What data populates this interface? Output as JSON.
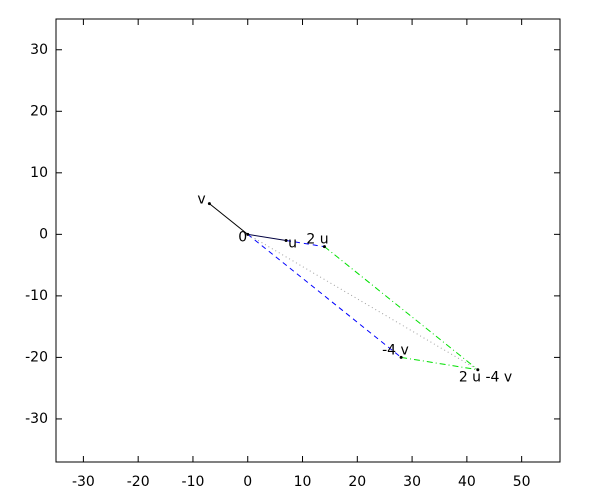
{
  "chart_data": {
    "type": "vector",
    "xlim": [
      -35,
      57
    ],
    "ylim": [
      -37,
      35
    ],
    "xticks": [
      -30,
      -20,
      -10,
      0,
      10,
      20,
      30,
      40,
      50
    ],
    "yticks": [
      -30,
      -20,
      -10,
      0,
      10,
      20,
      30
    ],
    "segments": [
      {
        "x": [
          0,
          -7
        ],
        "y": [
          0,
          5
        ],
        "color": "#000000",
        "style": "solid"
      },
      {
        "x": [
          0,
          7
        ],
        "y": [
          0,
          -1
        ],
        "color": "#000040",
        "style": "solid"
      },
      {
        "x": [
          7,
          14
        ],
        "y": [
          -1,
          -2
        ],
        "color": "#0000ff",
        "style": "dashed"
      },
      {
        "x": [
          0,
          28
        ],
        "y": [
          0,
          -20
        ],
        "color": "#0000ff",
        "style": "dashed"
      },
      {
        "x": [
          0,
          42
        ],
        "y": [
          0,
          -22
        ],
        "color": "#a0a0a0",
        "style": "dotted"
      },
      {
        "x": [
          14,
          42
        ],
        "y": [
          -2,
          -22
        ],
        "color": "#00e000",
        "style": "dashdot"
      },
      {
        "x": [
          28,
          42
        ],
        "y": [
          -20,
          -22
        ],
        "color": "#00e000",
        "style": "dashdot"
      }
    ],
    "points": [
      {
        "label": "v",
        "x": -7,
        "y": 5
      },
      {
        "label": "0",
        "x": 0,
        "y": 0
      },
      {
        "label": "u",
        "x": 7,
        "y": -1
      },
      {
        "label": "2 u",
        "x": 14,
        "y": -2
      },
      {
        "label": "-4 v",
        "x": 28,
        "y": -20
      },
      {
        "label": "2 u -4 v",
        "x": 42,
        "y": -22
      }
    ]
  }
}
